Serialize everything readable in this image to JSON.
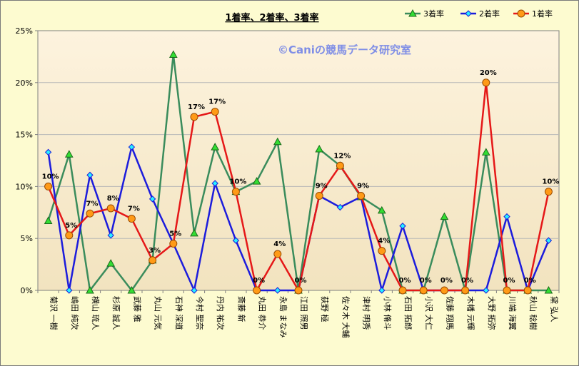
{
  "chart_data": {
    "type": "line",
    "title": "1着率、2着率、3着率",
    "watermark": "©Caniの競馬データ研究室",
    "xlabel": "",
    "ylabel": "",
    "ylim": [
      0,
      25
    ],
    "yticks": [
      "0%",
      "5%",
      "10%",
      "15%",
      "20%",
      "25%"
    ],
    "grid": true,
    "legend_position": "top-right",
    "categories": [
      "菊沢 一樹",
      "嶋田 純次",
      "横山 琉人",
      "杉原 誠人",
      "武藤 雅",
      "丸山 元気",
      "石神 深道",
      "今村 聖奈",
      "丹内 祐次",
      "斎藤 新",
      "丸田 恭介",
      "永島 まなみ",
      "江田 照男",
      "荻野 極",
      "佐々木 大輔",
      "津村 明秀",
      "小林 脩斗",
      "石田 拓郎",
      "小沢 大仁",
      "佐藤 翔馬",
      "木幡 元輝",
      "大野 拓弥",
      "川端 海翼",
      "秋山 稔樹",
      "黛 弘人"
    ],
    "series": [
      {
        "name": "3着率",
        "color": "#3a8c5c",
        "marker": "triangle",
        "values": [
          6.7,
          13.1,
          0,
          2.6,
          0,
          2.9,
          22.7,
          5.5,
          13.8,
          9.5,
          10.5,
          14.3,
          0,
          13.6,
          12,
          9,
          7.7,
          0,
          0,
          7.1,
          0,
          13.3,
          0,
          0,
          0
        ]
      },
      {
        "name": "2着率",
        "color": "#1c1cdc",
        "marker": "diamond",
        "values": [
          13.3,
          0,
          11.1,
          5.3,
          13.8,
          8.8,
          4.5,
          0,
          10.3,
          4.8,
          0,
          0,
          0,
          9.1,
          8,
          9,
          0,
          6.2,
          0,
          0,
          0,
          0,
          7.1,
          0,
          4.8
        ]
      },
      {
        "name": "1着率",
        "color": "#e51818",
        "marker": "circle",
        "values": [
          10,
          5.3,
          7.4,
          7.9,
          6.9,
          2.9,
          4.5,
          16.7,
          17.2,
          9.5,
          0,
          3.5,
          0,
          9.1,
          12,
          9.1,
          3.8,
          0,
          0,
          0,
          0,
          20,
          0,
          0,
          9.5
        ],
        "labels": [
          "10%",
          "5%",
          "7%",
          "8%",
          "7%",
          "3%",
          "5%",
          "17%",
          "17%",
          "10%",
          "0%",
          "4%",
          "0%",
          "9%",
          "12%",
          "9%",
          "4%",
          "0%",
          "0%",
          "0%",
          "0%",
          "20%",
          "0%",
          "0%",
          "10%"
        ]
      }
    ]
  }
}
